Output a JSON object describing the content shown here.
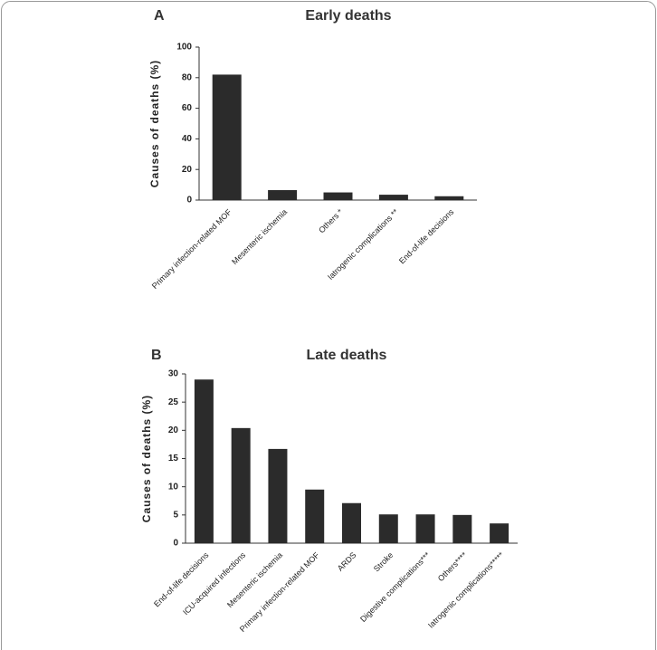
{
  "chart_data": [
    {
      "type": "bar",
      "label": "A",
      "title": "Early deaths",
      "y_label": "Causes of deaths (%)",
      "categories": [
        "Primary infection-related MOF",
        "Mesenteric ischemia",
        "Others *",
        "Iatrogenic complications **",
        "End-of-life decisions"
      ],
      "values": [
        82,
        6.5,
        5,
        3.5,
        2.5
      ],
      "color": "#2b2b2b",
      "ylim": [
        0,
        100
      ],
      "yticks": [
        0,
        20,
        40,
        60,
        80,
        100
      ],
      "grid": false
    },
    {
      "type": "bar",
      "label": "B",
      "title": "Late deaths",
      "y_label": "Causes of deaths (%)",
      "categories": [
        "End-of-life decisions",
        "ICU-acquired infections",
        "Mesenteric ischemia",
        "Primary infection-related MOF",
        "ARDS",
        "Stroke",
        "Digestive complications***",
        "Others****",
        "Iatrogenic complications*****"
      ],
      "values": [
        29,
        20.4,
        16.7,
        9.5,
        7.1,
        5.1,
        5.1,
        5.0,
        3.5
      ],
      "color": "#2b2b2b",
      "ylim": [
        0,
        30
      ],
      "yticks": [
        0,
        5,
        10,
        15,
        20,
        25,
        30
      ],
      "grid": false
    }
  ]
}
